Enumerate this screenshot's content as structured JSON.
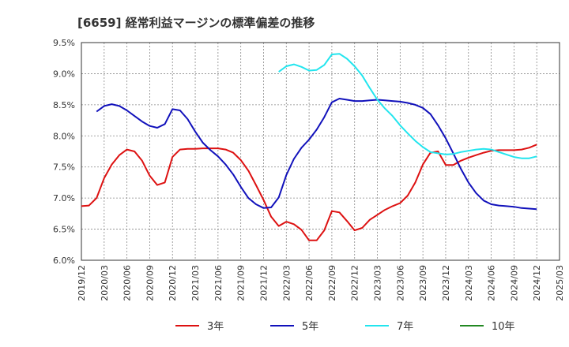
{
  "chart_data": {
    "type": "line",
    "title": "[6659]  経常利益マージンの標準偏差の推移",
    "xlabel": "",
    "ylabel": "",
    "ylim": [
      6.0,
      9.5
    ],
    "yticks": [
      "6.0%",
      "6.5%",
      "7.0%",
      "7.5%",
      "8.0%",
      "8.5%",
      "9.0%",
      "9.5%"
    ],
    "xticks": [
      "2019/12",
      "2020/03",
      "2020/06",
      "2020/09",
      "2020/12",
      "2021/03",
      "2021/06",
      "2021/09",
      "2021/12",
      "2022/03",
      "2022/06",
      "2022/09",
      "2022/12",
      "2023/03",
      "2023/06",
      "2023/09",
      "2023/12",
      "2024/03",
      "2024/06",
      "2024/09",
      "2024/12",
      "2025/03"
    ],
    "grid": true,
    "legend_position": "bottom",
    "colors": {
      "3年": "#dd1111",
      "5年": "#1111bb",
      "7年": "#22e5ee",
      "10年": "#228822"
    },
    "series": [
      {
        "name": "3年",
        "start": "2019/12",
        "values": [
          6.87,
          6.88,
          7.0,
          7.32,
          7.54,
          7.69,
          7.78,
          7.75,
          7.6,
          7.36,
          7.21,
          7.25,
          7.66,
          7.78,
          7.79,
          7.79,
          7.8,
          7.8,
          7.8,
          7.78,
          7.73,
          7.61,
          7.44,
          7.21,
          6.97,
          6.7,
          6.55,
          6.62,
          6.58,
          6.49,
          6.32,
          6.32,
          6.48,
          6.79,
          6.77,
          6.63,
          6.48,
          6.52,
          6.65,
          6.73,
          6.81,
          6.87,
          6.92,
          7.04,
          7.25,
          7.54,
          7.73,
          7.75,
          7.53,
          7.53,
          7.6,
          7.65,
          7.69,
          7.73,
          7.76,
          7.77,
          7.77,
          7.77,
          7.78,
          7.81,
          7.86
        ]
      },
      {
        "name": "5年",
        "start": "2019/12",
        "values": [
          null,
          null,
          8.39,
          8.48,
          8.51,
          8.48,
          8.41,
          8.32,
          8.23,
          8.16,
          8.13,
          8.19,
          8.43,
          8.41,
          8.27,
          8.07,
          7.89,
          7.77,
          7.67,
          7.54,
          7.38,
          7.18,
          7.0,
          6.9,
          6.84,
          6.85,
          7.01,
          7.37,
          7.63,
          7.81,
          7.94,
          8.1,
          8.3,
          8.54,
          8.6,
          8.58,
          8.56,
          8.56,
          8.57,
          8.58,
          8.57,
          8.56,
          8.55,
          8.53,
          8.5,
          8.45,
          8.35,
          8.17,
          7.96,
          7.72,
          7.47,
          7.25,
          7.08,
          6.96,
          6.9,
          6.88,
          6.87,
          6.86,
          6.84,
          6.83,
          6.82
        ]
      },
      {
        "name": "7年",
        "start": "2019/12",
        "values": [
          null,
          null,
          null,
          null,
          null,
          null,
          null,
          null,
          null,
          null,
          null,
          null,
          null,
          null,
          null,
          null,
          null,
          null,
          null,
          null,
          null,
          null,
          null,
          null,
          null,
          null,
          9.03,
          9.12,
          9.15,
          9.11,
          9.05,
          9.06,
          9.14,
          9.31,
          9.32,
          9.24,
          9.12,
          8.97,
          8.77,
          8.58,
          8.44,
          8.32,
          8.17,
          8.04,
          7.92,
          7.82,
          7.74,
          7.72,
          7.7,
          7.71,
          7.74,
          7.76,
          7.78,
          7.79,
          7.78,
          7.74,
          7.7,
          7.66,
          7.64,
          7.64,
          7.67
        ]
      },
      {
        "name": "10年",
        "start": "2019/12",
        "values": []
      }
    ]
  }
}
